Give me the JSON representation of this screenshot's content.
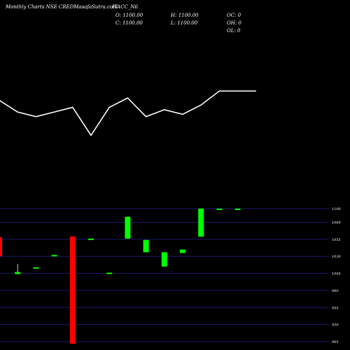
{
  "header": {
    "title": "Monthly Charts NSE CREDMasafaSutra.com",
    "symbol": "ITACC_N6",
    "open": "O: 1100.00",
    "close": "C: 1100.00",
    "high": "H: 1100.00",
    "low": "L: 1100.00",
    "oc": "OC: 0",
    "oh": "OH: 0",
    "ol": "OL: 0"
  },
  "colors": {
    "background": "#000000",
    "up": "#00ff00",
    "down": "#ff0000",
    "line": "#ffffff",
    "grid": "#1a1a6e",
    "text": "#ffffff"
  },
  "chart_data": [
    {
      "type": "line",
      "title": "",
      "xlabel": "",
      "ylabel": "",
      "x": [
        1,
        2,
        3,
        4,
        5,
        6,
        7,
        8,
        9,
        10,
        11,
        12,
        13,
        14,
        15
      ],
      "y": [
        -5,
        -10,
        -12,
        -10,
        -8,
        -20,
        -8,
        -4,
        -12,
        -9,
        -11,
        -7,
        -1,
        -1,
        -1
      ],
      "ylim": [
        -22,
        2
      ],
      "grid": false
    },
    {
      "type": "candlestick",
      "title": "",
      "xlabel": "",
      "ylabel": "",
      "x": [
        1,
        2,
        3,
        4,
        5,
        6,
        7,
        8,
        9,
        10,
        11,
        12,
        13,
        14
      ],
      "open": [
        1058,
        1004,
        1013,
        1031,
        1059,
        1055,
        1005,
        1056,
        1036,
        1015,
        1035,
        1059,
        1100,
        1100
      ],
      "close": [
        1030,
        1007,
        1014,
        1032,
        902,
        1056,
        1006,
        1088,
        1054,
        1036,
        1040,
        1100,
        1100,
        1100
      ],
      "high": [
        1058,
        1019,
        1014,
        1032,
        1059,
        1056,
        1006,
        1088,
        1054,
        1036,
        1040,
        1100,
        1100,
        1100
      ],
      "low": [
        1006,
        1004,
        1013,
        1031,
        902,
        1055,
        1005,
        1056,
        1036,
        1015,
        1035,
        1059,
        1100,
        1100
      ],
      "yticks": [
        "1100",
        "1080",
        "1055",
        "1030",
        "1005",
        "980",
        "955",
        "930",
        "905"
      ],
      "ylim": [
        905,
        1100
      ],
      "grid": true,
      "axis_position": "right"
    }
  ]
}
